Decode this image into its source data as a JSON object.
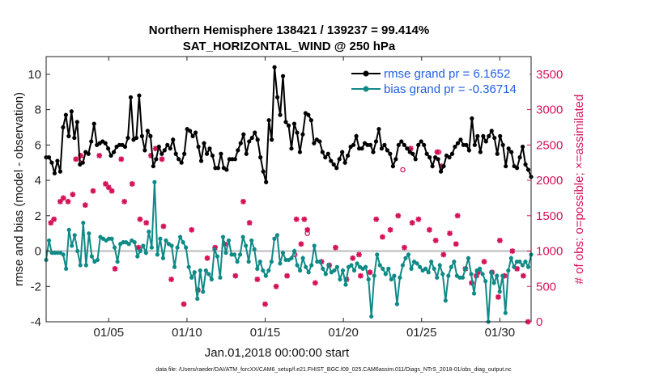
{
  "chart_data": {
    "type": "line",
    "title_line1": "Northern Hemisphere 138421 / 139237 = 99.414%",
    "title_line2": "SAT_HORIZONTAL_WIND @ 250 hPa",
    "xlabel": "Jan.01,2018 00:00:00 start",
    "ylabel": "rmse and bias (model - observation)",
    "ylabel_right": "# of obs: o=possible; ×=assimilated",
    "footer": "data file: /Users/raeder/DAI/ATM_forcXX/CAM6_setup/f.e21.FHIST_BGC.f09_025.CAM6assim.011/Diags_NTrS_2018-01/obs_diag_output.nc",
    "xlim": [
      1,
      32
    ],
    "ylim": [
      -4,
      11
    ],
    "ylim_right": [
      0,
      3750
    ],
    "xticks": [
      5,
      10,
      15,
      20,
      25,
      30
    ],
    "xtick_labels": [
      "01/05",
      "01/10",
      "01/15",
      "01/20",
      "01/25",
      "01/30"
    ],
    "yticks": [
      -4,
      -2,
      0,
      2,
      4,
      6,
      8,
      10
    ],
    "ytick_labels": [
      "-4",
      "-2",
      "0",
      "2",
      "4",
      "6",
      "8",
      "10"
    ],
    "yticks_right": [
      0,
      500,
      1000,
      1500,
      2000,
      2500,
      3000,
      3500
    ],
    "ytick_labels_right": [
      "0",
      "500",
      "1000",
      "1500",
      "2000",
      "2500",
      "3000",
      "3500"
    ],
    "colors": {
      "rmse": "#000000",
      "bias": "#0f8a87",
      "obs": "#d5135a",
      "zero_line": "#bbbbbb",
      "legend_text": "#1f5fe0"
    },
    "series": [
      {
        "name": "rmse",
        "legend": "rmse grand pr = 6.1652",
        "values": [
          5.3,
          5.3,
          5.0,
          4.4,
          5.1,
          4.5,
          7.0,
          7.7,
          6.5,
          7.9,
          6.4,
          7.3,
          4.9,
          5.0,
          5.6,
          5.5,
          6.2,
          7.2,
          6.0,
          6.1,
          6.2,
          6.1,
          5.8,
          5.4,
          5.6,
          5.9,
          6.0,
          6.0,
          5.9,
          6.4,
          8.7,
          6.3,
          6.4,
          8.8,
          6.5,
          5.7,
          6.8,
          6.5,
          4.8,
          5.2,
          5.9,
          5.5,
          5.7,
          6.0,
          5.8,
          6.3,
          5.5,
          5.2,
          5.0,
          5.5,
          6.9,
          6.8,
          6.5,
          6.7,
          5.9,
          5.1,
          6.1,
          5.5,
          5.8,
          5.4,
          4.7,
          4.7,
          5.5,
          4.7,
          4.6,
          5.2,
          5.2,
          5.2,
          5.7,
          6.1,
          6.6,
          5.5,
          6.2,
          6.4,
          6.7,
          6.3,
          5.3,
          4.5,
          3.9,
          7.4,
          6.3,
          10.4,
          8.7,
          7.7,
          9.9,
          7.3,
          7.1,
          5.8,
          7.2,
          6.7,
          5.6,
          6.6,
          7.8,
          7.7,
          7.4,
          6.1,
          6.3,
          6.2,
          5.6,
          5.3,
          5.5,
          5.1,
          4.9,
          4.7,
          5.2,
          5.6,
          5.0,
          5.4,
          5.9,
          6.0,
          6.5,
          5.8,
          5.8,
          6.1,
          6.0,
          6.0,
          5.6,
          6.2,
          6.9,
          5.8,
          6.0,
          5.7,
          5.5,
          4.8,
          5.2,
          6.0,
          6.2,
          6.0,
          5.8,
          5.6,
          5.5,
          5.2,
          6.0,
          6.2,
          6.0,
          5.5,
          5.3,
          4.8,
          5.3,
          5.2,
          4.5,
          4.8,
          5.4,
          5.3,
          5.5,
          5.9,
          6.1,
          6.3,
          6.0,
          6.0,
          5.7,
          7.5,
          6.0,
          6.5,
          5.6,
          6.5,
          6.2,
          6.5,
          6.8,
          6.4,
          5.5,
          6.5,
          6.0,
          4.8,
          5.8,
          5.6,
          4.8,
          4.7,
          5.3,
          5.9,
          4.9,
          4.6,
          4.2
        ]
      },
      {
        "name": "bias",
        "legend": "bias grand pr = -0.36714",
        "values": [
          -0.5,
          0.6,
          -0.1,
          -0.1,
          -0.1,
          -0.1,
          -0.2,
          -1.0,
          1.2,
          0.3,
          0.9,
          0.0,
          -0.8,
          1.6,
          -0.8,
          1.0,
          -0.3,
          -0.6,
          -0.5,
          0.8,
          0.7,
          0.6,
          0.7,
          0.7,
          0.2,
          -0.6,
          0.4,
          0.5,
          0.5,
          0.4,
          0.6,
          0.5,
          -0.3,
          0.0,
          0.3,
          -0.1,
          1.1,
          0.2,
          3.9,
          -0.2,
          0.7,
          -0.4,
          0.6,
          0.4,
          0.3,
          -0.9,
          0.2,
          0.8,
          0.5,
          0.2,
          -0.9,
          -1.5,
          -1.2,
          -2.7,
          -1.1,
          -2.3,
          -1.1,
          -1.3,
          -1.6,
          0.1,
          -0.3,
          -1.5,
          0.8,
          -0.1,
          0.6,
          -0.2,
          -0.2,
          -0.6,
          -0.2,
          0.8,
          0.3,
          -0.6,
          0.6,
          0.1,
          -1.0,
          -0.6,
          -1.1,
          -1.4,
          -1.1,
          -0.6,
          0.7,
          0.9,
          -0.7,
          -0.1,
          -0.5,
          -0.5,
          -0.4,
          0.0,
          -0.8,
          -1.1,
          -0.4,
          -0.9,
          -1.2,
          -0.8,
          0.3,
          -0.6,
          -0.6,
          -1.0,
          -1.3,
          -0.8,
          -1.2,
          -1.1,
          -0.9,
          -1.6,
          -1.1,
          -1.9,
          -0.9,
          -0.8,
          -1.1,
          -0.7,
          -0.9,
          -1.0,
          -0.9,
          -1.6,
          -3.7,
          -1.4,
          -0.2,
          -0.8,
          -1.0,
          -1.3,
          -1.0,
          -1.6,
          -1.4,
          -3.0,
          -1.5,
          -0.8,
          -0.4,
          -0.2,
          -1.0,
          -0.6,
          -0.7,
          -0.9,
          -1.1,
          -1.0,
          -1.2,
          -0.6,
          -1.0,
          -1.5,
          -0.8,
          -1.3,
          -2.8,
          -1.4,
          -0.9,
          -0.6,
          -1.4,
          -1.5,
          -1.5,
          -1.0,
          -0.4,
          -1.3,
          -2.4,
          -1.1,
          -1.0,
          -1.3,
          -1.7,
          -4.0,
          -1.2,
          -1.8,
          -1.4,
          -2.3,
          -1.4,
          -3.5,
          -1.1,
          -0.4,
          -0.9,
          -0.6,
          -0.6,
          -0.8,
          -0.6,
          -0.9,
          -0.2
        ]
      }
    ],
    "obs_assimilated": [
      [
        1.3,
        1400
      ],
      [
        1.5,
        1450
      ],
      [
        1.9,
        1700
      ],
      [
        2.1,
        1750
      ],
      [
        2.4,
        1700
      ],
      [
        2.7,
        1800
      ],
      [
        2.9,
        2300
      ],
      [
        3.2,
        2350
      ],
      [
        3.5,
        1650
      ],
      [
        4.0,
        1850
      ],
      [
        4.4,
        2350
      ],
      [
        4.8,
        1950
      ],
      [
        5.0,
        1900
      ],
      [
        5.2,
        1850
      ],
      [
        5.8,
        2300
      ],
      [
        6.0,
        1700
      ],
      [
        6.5,
        1950
      ],
      [
        7.0,
        1450
      ],
      [
        7.4,
        1400
      ],
      [
        7.7,
        2350
      ],
      [
        8.0,
        2450
      ],
      [
        8.4,
        2300
      ],
      [
        5.4,
        750
      ],
      [
        6.9,
        1050
      ],
      [
        8.5,
        1350
      ],
      [
        9.0,
        600
      ],
      [
        9.8,
        250
      ],
      [
        10.3,
        1300
      ],
      [
        10.7,
        450
      ],
      [
        11.3,
        900
      ],
      [
        11.8,
        1050
      ],
      [
        12.4,
        1100
      ],
      [
        13.1,
        650
      ],
      [
        13.6,
        1700
      ],
      [
        14.0,
        1400
      ],
      [
        14.5,
        600
      ],
      [
        15.0,
        250
      ],
      [
        15.7,
        500
      ],
      [
        16.4,
        650
      ],
      [
        17.0,
        1450
      ],
      [
        17.3,
        1100
      ],
      [
        17.7,
        1300
      ],
      [
        18.2,
        550
      ],
      [
        18.6,
        850
      ],
      [
        19.1,
        800
      ],
      [
        19.5,
        1050
      ],
      [
        20.2,
        600
      ],
      [
        20.6,
        900
      ],
      [
        21.1,
        650
      ],
      [
        21.7,
        700
      ],
      [
        22.1,
        1450
      ],
      [
        22.5,
        1200
      ],
      [
        23.0,
        1300
      ],
      [
        23.5,
        1500
      ],
      [
        23.9,
        1050
      ],
      [
        24.4,
        1400
      ],
      [
        24.8,
        1450
      ],
      [
        25.5,
        1300
      ],
      [
        25.9,
        1150
      ],
      [
        26.4,
        950
      ],
      [
        26.8,
        1250
      ],
      [
        27.2,
        1100
      ],
      [
        27.8,
        750
      ],
      [
        28.2,
        550
      ],
      [
        28.6,
        700
      ],
      [
        29.0,
        850
      ],
      [
        29.5,
        700
      ],
      [
        29.9,
        350
      ],
      [
        30.3,
        650
      ],
      [
        30.8,
        1000
      ],
      [
        31.1,
        750
      ],
      [
        31.5,
        650
      ],
      [
        31.8,
        0
      ],
      [
        26.0,
        2400
      ],
      [
        26.3,
        2200
      ],
      [
        24.3,
        2450
      ],
      [
        21.0,
        950
      ],
      [
        17.5,
        1450
      ],
      [
        27.3,
        1500
      ],
      [
        28.5,
        650
      ],
      [
        30.0,
        1150
      ]
    ],
    "obs_possible": [
      [
        3.3,
        2300
      ],
      [
        17.7,
        1250
      ],
      [
        23.8,
        2150
      ],
      [
        16.9,
        950
      ],
      [
        26.1,
        2400
      ]
    ]
  }
}
